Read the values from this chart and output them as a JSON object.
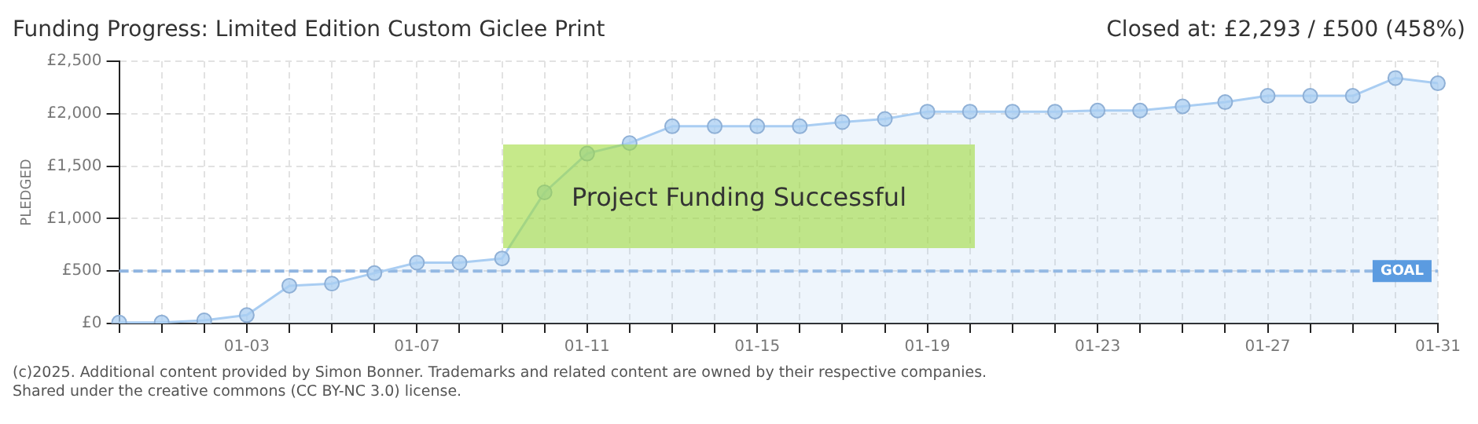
{
  "chart_data": {
    "type": "area",
    "title": "Funding Progress: Limited Edition Custom Giclee Print",
    "subtitle": "Closed at:  £2,293 / £500 (458%)",
    "ylabel": "PLEDGED",
    "categories": [
      null,
      null,
      null,
      "01-03",
      null,
      null,
      null,
      "01-07",
      null,
      null,
      null,
      "01-11",
      null,
      null,
      null,
      "01-15",
      null,
      null,
      null,
      "01-19",
      null,
      null,
      null,
      "01-23",
      null,
      null,
      null,
      "01-27",
      null,
      null,
      null,
      "01-31"
    ],
    "series": [
      {
        "color": "#a9cdf2",
        "values": [
          10,
          10,
          30,
          80,
          360,
          380,
          480,
          580,
          580,
          620,
          1250,
          1620,
          1720,
          1880,
          1880,
          1880,
          1880,
          1920,
          1950,
          2020,
          2020,
          2020,
          2020,
          2030,
          2030,
          2070,
          2110,
          2170,
          2170,
          2170,
          2340,
          2290
        ]
      }
    ],
    "ylim": [
      0,
      2500
    ],
    "yticks": [
      {
        "value": 0,
        "label": "£0"
      },
      {
        "value": 500,
        "label": "£500"
      },
      {
        "value": 1000,
        "label": "£1,000"
      },
      {
        "value": 1500,
        "label": "£1,500"
      },
      {
        "value": 2000,
        "label": "£2,000"
      },
      {
        "value": 2500,
        "label": "£2,500"
      }
    ],
    "ref_lines": [
      {
        "axis": "y",
        "value": 500,
        "label": "GOAL",
        "color": "#8fb4e0",
        "line_style": "dashed"
      }
    ],
    "annotations": [
      "Project Funding Successful",
      "(c)2025. Additional content provided by Simon Bonner. Trademarks and related content are owned by their respective companies.",
      "Shared under the creative commons (CC BY-NC 3.0) license."
    ],
    "grid": true,
    "legend": false,
    "marker": "circle",
    "line_style": "solid"
  }
}
